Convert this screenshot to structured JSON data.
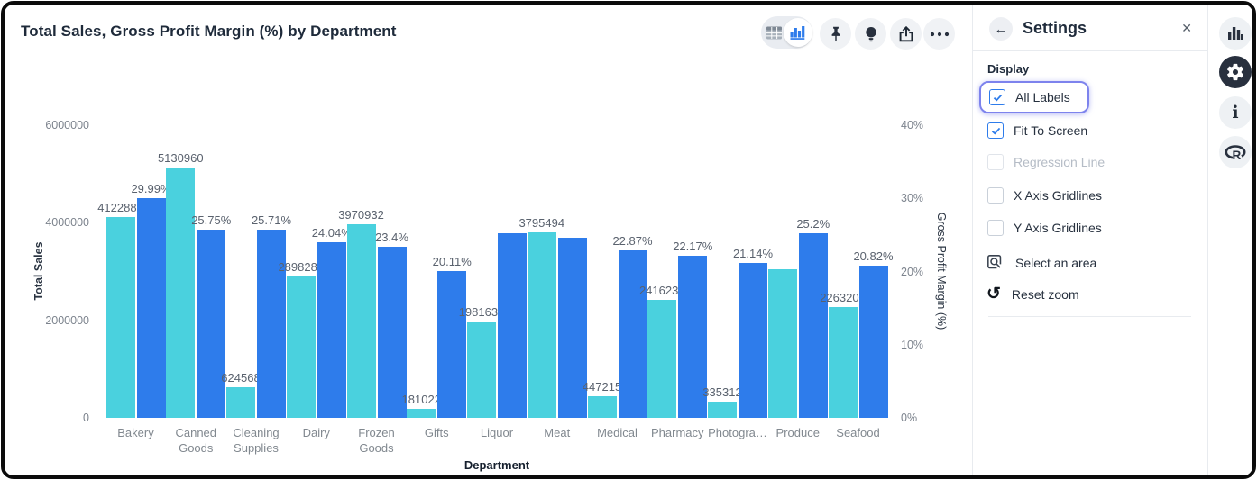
{
  "window": {
    "frame_color": "#0b0b0b",
    "background": "#ffffff"
  },
  "header": {
    "title": "Total Sales, Gross Profit Margin (%) by Department"
  },
  "toolbar": {
    "view_toggle": [
      {
        "icon": "table-view-icon",
        "active": false
      },
      {
        "icon": "chart-view-icon",
        "active": true
      }
    ],
    "buttons": [
      {
        "icon": "pin-icon"
      },
      {
        "icon": "insights-bulb-icon"
      },
      {
        "icon": "export-icon"
      },
      {
        "icon": "more-options-icon"
      }
    ]
  },
  "colors": {
    "total_sales": "#4ad1de",
    "gross_profit_margin": "#2e7ceb",
    "checkbox_checked": "#2e7ceb",
    "focus_ring": "#7d83ed",
    "active_rail": "#28303e"
  },
  "chart_data": {
    "type": "bar",
    "title": "Total Sales, Gross Profit Margin (%) by Department",
    "xlabel": "Department",
    "categories": [
      "Bakery",
      "Canned Goods",
      "Cleaning Supplies",
      "Dairy",
      "Frozen Goods",
      "Gifts",
      "Liquor",
      "Meat",
      "Medical",
      "Pharmacy",
      "Photogra…",
      "Produce",
      "Seafood"
    ],
    "x_tick_labels": [
      "Bakery",
      "Canned\nGoods",
      "Cleaning\nSupplies",
      "Dairy",
      "Frozen\nGoods",
      "Gifts",
      "Liquor",
      "Meat",
      "Medical",
      "Pharmacy",
      "Photogra…",
      "Produce",
      "Seafood"
    ],
    "series": [
      {
        "name": "Total Sales",
        "axis": "left",
        "color": "#4ad1de",
        "values": [
          4122881,
          5130960,
          624568,
          2898285,
          3970932,
          181022,
          1981634,
          3795494,
          447215,
          2416230,
          335312,
          3046000,
          2263205
        ],
        "labels": [
          "4122881",
          "5130960",
          "624568",
          "2898285",
          "3970932",
          "181022",
          "1981634",
          "3795494",
          "447215",
          "2416230",
          "335312",
          null,
          "2263205"
        ]
      },
      {
        "name": "Gross Profit Margin (%)",
        "axis": "right",
        "color": "#2e7ceb",
        "values": [
          29.99,
          25.75,
          25.71,
          24.04,
          23.4,
          20.11,
          25.23,
          24.6,
          22.87,
          22.17,
          21.14,
          25.2,
          20.82
        ],
        "labels": [
          "29.99%",
          "25.75%",
          "25.71%",
          "24.04%",
          "23.4%",
          "20.11%",
          null,
          null,
          "22.87%",
          "22.17%",
          "21.14%",
          "25.2%",
          "20.82%"
        ]
      }
    ],
    "left_axis": {
      "label": "Total Sales",
      "ticks": [
        "0",
        "2000000",
        "4000000",
        "6000000"
      ],
      "min": 0,
      "max": 6000000
    },
    "right_axis": {
      "label": "Gross Profit Margin (%)",
      "ticks": [
        "0%",
        "10%",
        "20%",
        "30%",
        "40%"
      ],
      "min": 0,
      "max": 40
    },
    "gridlines": false,
    "legend_position": "bottom"
  },
  "settings_panel": {
    "header": {
      "back_icon": "back-arrow-icon",
      "title": "Settings",
      "close_icon": "close-icon"
    },
    "section": "Display",
    "checkboxes": [
      {
        "label": "All Labels",
        "checked": true,
        "disabled": false,
        "focused": true
      },
      {
        "label": "Fit To Screen",
        "checked": true,
        "disabled": false,
        "focused": false
      },
      {
        "label": "Regression Line",
        "checked": false,
        "disabled": true,
        "focused": false
      },
      {
        "label": "X Axis Gridlines",
        "checked": false,
        "disabled": false,
        "focused": false
      },
      {
        "label": "Y Axis Gridlines",
        "checked": false,
        "disabled": false,
        "focused": false
      }
    ],
    "tools": [
      {
        "icon": "select-area-icon",
        "label": "Select an area"
      },
      {
        "icon": "reset-zoom-icon",
        "label": "Reset zoom"
      }
    ]
  },
  "right_rail": {
    "buttons": [
      {
        "icon": "chart-type-icon",
        "active": false
      },
      {
        "icon": "settings-gear-icon",
        "active": true
      },
      {
        "icon": "info-icon",
        "active": false
      },
      {
        "icon": "r-logo-icon",
        "active": false
      }
    ]
  }
}
